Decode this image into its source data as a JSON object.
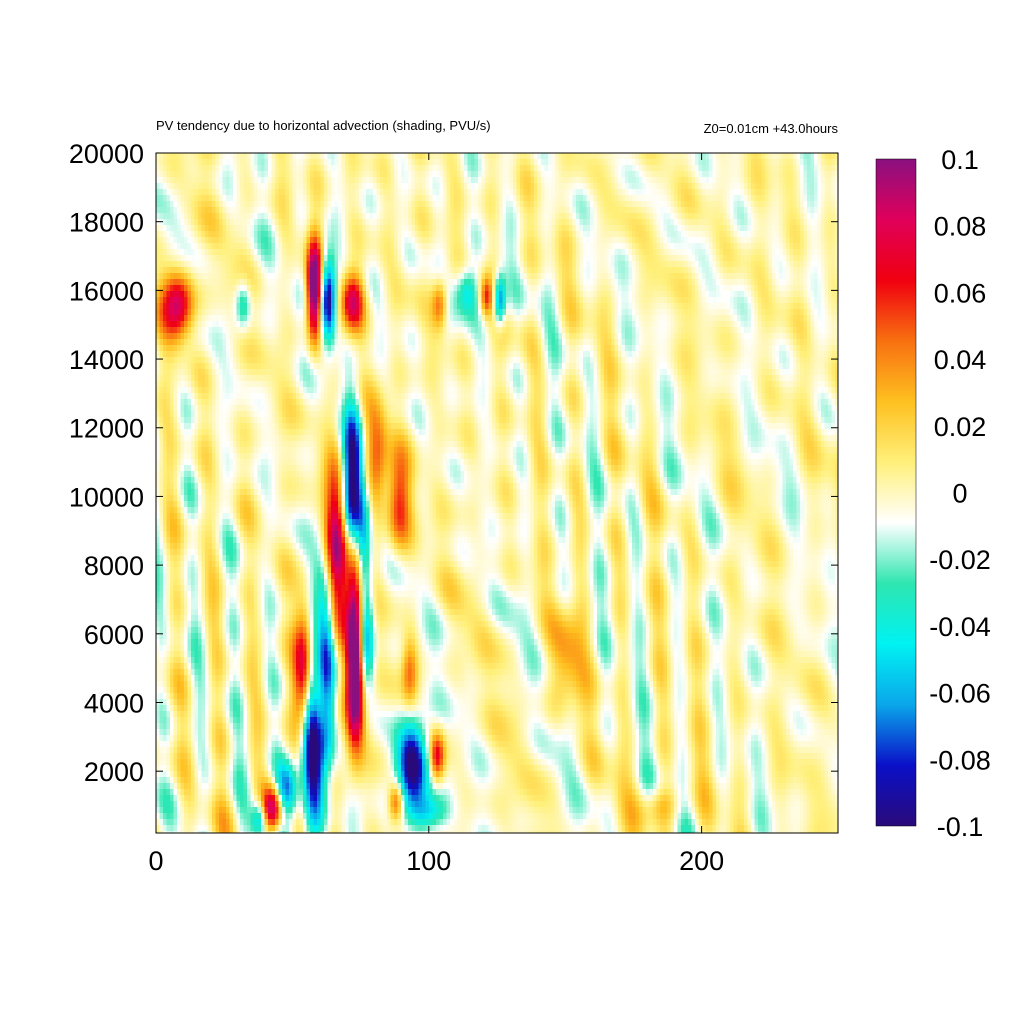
{
  "chart_data": {
    "type": "heatmap",
    "title": "PV tendency due to horizontal advection (shading, PVU/s)",
    "subtitle_right": "Z0=0.01cm   +43.0hours",
    "xlim": [
      0,
      250
    ],
    "ylim": [
      200,
      20000
    ],
    "x_ticks": [
      0,
      100,
      200
    ],
    "x_tick_labels": [
      "0",
      "100",
      "200"
    ],
    "y_ticks": [
      2000,
      4000,
      6000,
      8000,
      10000,
      12000,
      14000,
      16000,
      18000,
      20000
    ],
    "y_tick_labels": [
      "2000",
      "4000",
      "6000",
      "8000",
      "10000",
      "12000",
      "14000",
      "16000",
      "18000",
      "20000"
    ],
    "colorbar": {
      "range": [
        -0.1,
        0.1
      ],
      "ticks": [
        0.1,
        0.08,
        0.06,
        0.04,
        0.02,
        0,
        -0.02,
        -0.04,
        -0.06,
        -0.08,
        -0.1
      ],
      "tick_labels": [
        "0.1",
        "0.08",
        "0.06",
        "0.04",
        "0.02",
        "0",
        "-0.02",
        "-0.04",
        "-0.06",
        "-0.08",
        "-0.1"
      ],
      "colors": [
        "#2a0a7a",
        "#0a10c8",
        "#0aa6ea",
        "#00f2f2",
        "#2ee6b0",
        "#ffffff",
        "#fff07a",
        "#fec020",
        "#f87010",
        "#f00010",
        "#e0005a",
        "#8a1080"
      ]
    },
    "features": [
      {
        "name": "",
        "x": 62,
        "y": 5200,
        "sx": 3,
        "sy": 1800,
        "amp": -0.12
      },
      {
        "name": "",
        "x": 58,
        "y": 2500,
        "sx": 3,
        "sy": 1500,
        "amp": -0.11
      },
      {
        "name": "",
        "x": 66,
        "y": 8000,
        "sx": 3,
        "sy": 2000,
        "amp": 0.1
      },
      {
        "name": "",
        "x": 60,
        "y": 4000,
        "sx": 2,
        "sy": 1500,
        "amp": 0.07
      },
      {
        "name": "",
        "x": 54,
        "y": 5000,
        "sx": 2.5,
        "sy": 1200,
        "amp": 0.08
      },
      {
        "name": "",
        "x": 72,
        "y": 10200,
        "sx": 2.5,
        "sy": 1700,
        "amp": -0.12
      },
      {
        "name": "",
        "x": 73,
        "y": 7000,
        "sx": 2.5,
        "sy": 1700,
        "amp": 0.11
      },
      {
        "name": "",
        "x": 73,
        "y": 4200,
        "sx": 2.5,
        "sy": 1300,
        "amp": 0.1
      },
      {
        "name": "",
        "x": 76,
        "y": 8500,
        "sx": 2,
        "sy": 1300,
        "amp": -0.07
      },
      {
        "name": "",
        "x": 77,
        "y": 5700,
        "sx": 2,
        "sy": 1000,
        "amp": -0.08
      },
      {
        "name": "",
        "x": 81,
        "y": 11200,
        "sx": 3,
        "sy": 1200,
        "amp": 0.05
      },
      {
        "name": "",
        "x": 89,
        "y": 9800,
        "sx": 3,
        "sy": 1000,
        "amp": 0.06
      },
      {
        "name": "",
        "x": 43,
        "y": 900,
        "sx": 3,
        "sy": 500,
        "amp": 0.11
      },
      {
        "name": "",
        "x": 48,
        "y": 1400,
        "sx": 3,
        "sy": 600,
        "amp": -0.09
      },
      {
        "name": "",
        "x": 38,
        "y": 600,
        "sx": 2,
        "sy": 400,
        "amp": -0.06
      },
      {
        "name": "",
        "x": 94,
        "y": 2200,
        "sx": 4,
        "sy": 900,
        "amp": -0.11
      },
      {
        "name": "",
        "x": 103,
        "y": 2400,
        "sx": 2,
        "sy": 500,
        "amp": 0.07
      },
      {
        "name": "",
        "x": 100,
        "y": 800,
        "sx": 5,
        "sy": 400,
        "amp": -0.05
      },
      {
        "name": "",
        "x": 88,
        "y": 1100,
        "sx": 2,
        "sy": 400,
        "amp": 0.06
      },
      {
        "name": "",
        "x": 93,
        "y": 4900,
        "sx": 2,
        "sy": 700,
        "amp": 0.04
      },
      {
        "name": "",
        "x": 8,
        "y": 15600,
        "sx": 4,
        "sy": 700,
        "amp": 0.09
      },
      {
        "name": "",
        "x": 58,
        "y": 16000,
        "sx": 2,
        "sy": 1000,
        "amp": 0.12
      },
      {
        "name": "",
        "x": 63,
        "y": 15700,
        "sx": 2,
        "sy": 900,
        "amp": -0.11
      },
      {
        "name": "",
        "x": 72,
        "y": 15700,
        "sx": 3,
        "sy": 600,
        "amp": 0.08
      },
      {
        "name": "",
        "x": 104,
        "y": 15600,
        "sx": 2,
        "sy": 500,
        "amp": 0.05
      },
      {
        "name": "",
        "x": 114,
        "y": 16000,
        "sx": 3,
        "sy": 500,
        "amp": -0.05
      },
      {
        "name": "",
        "x": 126,
        "y": 15700,
        "sx": 1.5,
        "sy": 500,
        "amp": -0.08
      },
      {
        "name": "",
        "x": 121,
        "y": 15800,
        "sx": 1.5,
        "sy": 400,
        "amp": 0.05
      },
      {
        "name": "",
        "x": 32,
        "y": 15600,
        "sx": 2,
        "sy": 500,
        "amp": -0.04
      },
      {
        "name": "",
        "x": 150,
        "y": 5200,
        "sx": 4,
        "sy": 1000,
        "amp": 0.035
      },
      {
        "name": "",
        "x": 185,
        "y": 1000,
        "sx": 5,
        "sy": 400,
        "amp": 0.03
      }
    ]
  }
}
